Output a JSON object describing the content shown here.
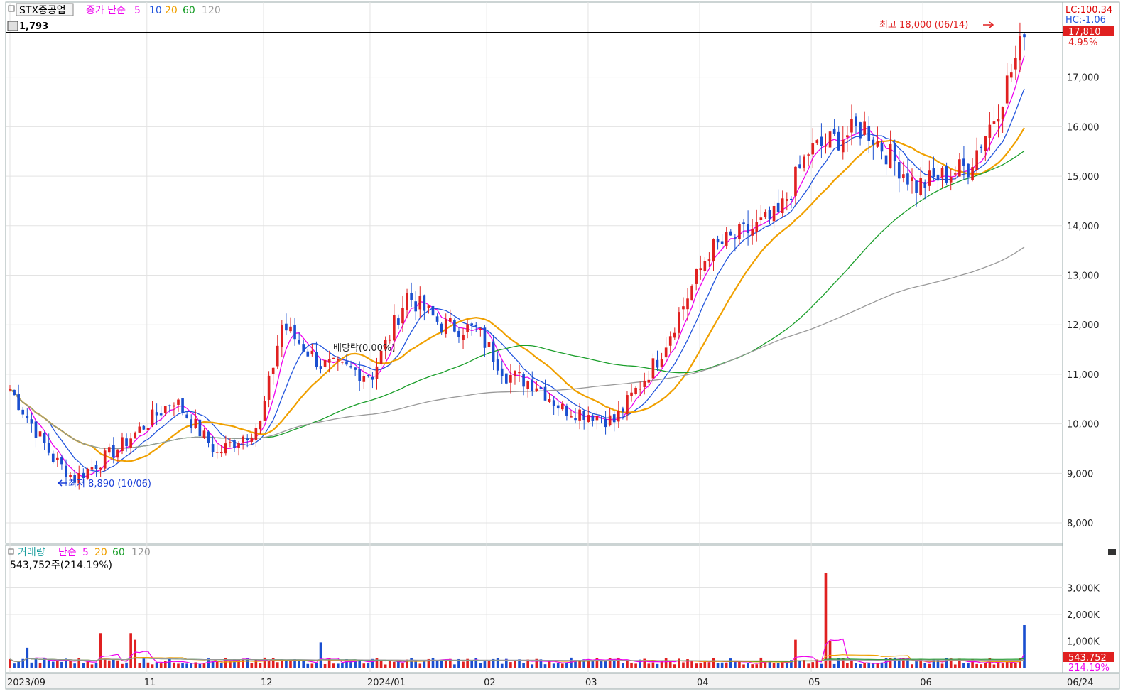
{
  "price_panel": {
    "stock_name": "STX중공업",
    "indicator": "종가 단순",
    "ma_periods": [
      "5",
      "10",
      "20",
      "60",
      "120"
    ],
    "ma_colors": [
      "#ee00ee",
      "#2255dd",
      "#f0a000",
      "#1a9e2a",
      "#999999"
    ],
    "top_left_value": "1,793",
    "lc_label": "LC:100.34",
    "hc_label": "HC:-1.06",
    "last_price_label": "17,810",
    "change_label": "4.95%",
    "high_annotation": "최고 18,000 (06/14)",
    "low_annotation": "최저 8,890 (10/06)",
    "dividend_annotation": "배당락(0.00%)"
  },
  "volume_panel": {
    "title": "거래량",
    "indicator": "단순",
    "ma_periods": [
      "5",
      "20",
      "60",
      "120"
    ],
    "ma_colors": [
      "#ee00ee",
      "#f0a000",
      "#1a9e2a",
      "#999999"
    ],
    "current_volume": "543,752주(214.19%)",
    "last_volume_label": "543,752",
    "last_ratio_label": "214.19%"
  },
  "x_axis": {
    "labels": [
      "2023/09",
      "11",
      "12",
      "2024/01",
      "02",
      "03",
      "04",
      "05",
      "06",
      "06/24"
    ]
  },
  "chart_data": {
    "type": "candlestick",
    "title": "STX중공업",
    "price_axis": {
      "ticks": [
        8000,
        9000,
        10000,
        11000,
        12000,
        13000,
        14000,
        15000,
        16000,
        17000
      ],
      "tick_labels": [
        "8,000",
        "9,000",
        "10,000",
        "11,000",
        "12,000",
        "13,000",
        "14,000",
        "15,000",
        "16,000",
        "17,000"
      ],
      "range": [
        7800,
        18200
      ]
    },
    "volume_axis": {
      "ticks": [
        1000,
        2000,
        3000
      ],
      "tick_labels": [
        "1,000K",
        "2,000K",
        "3,000K"
      ],
      "unit": "K",
      "range": [
        0,
        4000
      ]
    },
    "reference_line": 17810,
    "candle_count": 180,
    "anchors": [
      [
        0,
        10700
      ],
      [
        10,
        9300
      ],
      [
        15,
        8890
      ],
      [
        25,
        9500
      ],
      [
        38,
        10500
      ],
      [
        48,
        9400
      ],
      [
        58,
        10000
      ],
      [
        63,
        12000
      ],
      [
        72,
        11200
      ],
      [
        84,
        11000
      ],
      [
        92,
        12600
      ],
      [
        100,
        12000
      ],
      [
        108,
        11900
      ],
      [
        115,
        11000
      ],
      [
        122,
        10800
      ],
      [
        128,
        10300
      ],
      [
        135,
        10200
      ],
      [
        140,
        10050
      ],
      [
        150,
        11300
      ],
      [
        162,
        13500
      ],
      [
        178,
        14200
      ],
      [
        185,
        15500
      ],
      [
        198,
        16000
      ],
      [
        210,
        14800
      ],
      [
        222,
        15200
      ],
      [
        228,
        16200
      ],
      [
        235,
        17810
      ]
    ],
    "volume_spikes": [
      [
        5,
        750
      ],
      [
        25,
        1300
      ],
      [
        34,
        1300
      ],
      [
        35,
        1050
      ],
      [
        87,
        950
      ],
      [
        220,
        1050
      ],
      [
        228,
        3550
      ],
      [
        230,
        1000
      ],
      [
        284,
        1600
      ]
    ],
    "series_ma": [
      "5",
      "10",
      "20",
      "60",
      "120"
    ]
  }
}
